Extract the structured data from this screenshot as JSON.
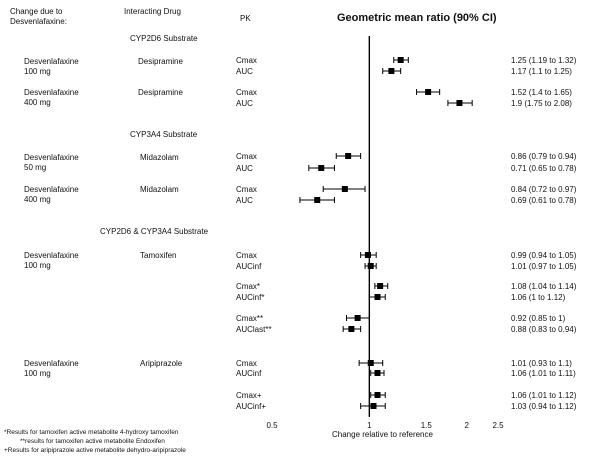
{
  "headers": {
    "col1": [
      "Change due to",
      "Desvenlafaxine:"
    ],
    "col2": "Interacting Drug",
    "col3": "PK",
    "title": "Geometric mean ratio (90% CI)"
  },
  "sections": [
    {
      "label": "CYP2D6 Substrate"
    },
    {
      "label": "CYP3A4 Substrate"
    },
    {
      "label": "CYP2D6 & CYP3A4 Substrate"
    }
  ],
  "groups": [
    {
      "line1": "Desvenlafaxine",
      "line2": "100 mg",
      "drug": "Desipramine"
    },
    {
      "line1": "Desvenlafaxine",
      "line2": "400 mg",
      "drug": "Desipramine"
    },
    {
      "line1": "Desvenlafaxine",
      "line2": "50 mg",
      "drug": "Midazolam"
    },
    {
      "line1": "Desvenlafaxine",
      "line2": "400 mg",
      "drug": "Midazolam"
    },
    {
      "line1": "Desvenlafaxine",
      "line2": "100 mg",
      "drug": "Tamoxifen"
    },
    {
      "line1": "Desvenlafaxine",
      "line2": "100 mg",
      "drug": "Aripiprazole"
    }
  ],
  "footnotes": [
    "*Results for tamoxifen active metabolite 4-hydroxy tamoxifen",
    "**results for tamoxifen active metabolite Endoxifen",
    "+Results for aripiprazole active metabolite dehydro-aripiprazole"
  ],
  "chart_data": {
    "type": "forest",
    "title": "Geometric mean ratio (90% CI)",
    "xlabel": "Change relative to reference",
    "xscale": "log",
    "xlim": [
      0.5,
      2.5
    ],
    "xticks": [
      0.5,
      1,
      1.5,
      2,
      2.5
    ],
    "xtick_labels": [
      "0.5",
      "1",
      "1.5",
      "2",
      "2.5"
    ],
    "reference_line": 1,
    "rows": [
      {
        "pk": "Cmax",
        "value": 1.25,
        "lo": 1.19,
        "hi": 1.32,
        "label": "1.25 (1.19 to 1.32)"
      },
      {
        "pk": "AUC",
        "value": 1.17,
        "lo": 1.1,
        "hi": 1.25,
        "label": "1.17 (1.1 to 1.25)"
      },
      {
        "pk": "Cmax",
        "value": 1.52,
        "lo": 1.4,
        "hi": 1.65,
        "label": "1.52 (1.4 to 1.65)"
      },
      {
        "pk": "AUC",
        "value": 1.9,
        "lo": 1.75,
        "hi": 2.08,
        "label": "1.9 (1.75 to 2.08)"
      },
      {
        "pk": "Cmax",
        "value": 0.86,
        "lo": 0.79,
        "hi": 0.94,
        "label": "0.86 (0.79 to 0.94)"
      },
      {
        "pk": "AUC",
        "value": 0.71,
        "lo": 0.65,
        "hi": 0.78,
        "label": "0.71 (0.65 to 0.78)"
      },
      {
        "pk": "Cmax",
        "value": 0.84,
        "lo": 0.72,
        "hi": 0.97,
        "label": "0.84 (0.72 to 0.97)"
      },
      {
        "pk": "AUC",
        "value": 0.69,
        "lo": 0.61,
        "hi": 0.78,
        "label": "0.69 (0.61 to 0.78)"
      },
      {
        "pk": "Cmax",
        "value": 0.99,
        "lo": 0.94,
        "hi": 1.05,
        "label": "0.99 (0.94 to 1.05)"
      },
      {
        "pk": "AUCinf",
        "value": 1.01,
        "lo": 0.97,
        "hi": 1.05,
        "label": "1.01 (0.97 to 1.05)"
      },
      {
        "pk": "Cmax*",
        "value": 1.08,
        "lo": 1.04,
        "hi": 1.14,
        "label": "1.08 (1.04 to 1.14)"
      },
      {
        "pk": "AUCinf*",
        "value": 1.06,
        "lo": 1,
        "hi": 1.12,
        "label": "1.06 (1 to 1.12)"
      },
      {
        "pk": "Cmax**",
        "value": 0.92,
        "lo": 0.85,
        "hi": 1,
        "label": "0.92 (0.85 to 1)"
      },
      {
        "pk": "AUClast**",
        "value": 0.88,
        "lo": 0.83,
        "hi": 0.94,
        "label": "0.88 (0.83 to 0.94)"
      },
      {
        "pk": "Cmax",
        "value": 1.01,
        "lo": 0.93,
        "hi": 1.1,
        "label": "1.01 (0.93 to 1.1)"
      },
      {
        "pk": "AUCinf",
        "value": 1.06,
        "lo": 1.01,
        "hi": 1.11,
        "label": "1.06 (1.01 to 1.11)"
      },
      {
        "pk": "Cmax+",
        "value": 1.06,
        "lo": 1.01,
        "hi": 1.12,
        "label": "1.06 (1.01 to 1.12)"
      },
      {
        "pk": "AUCinf+",
        "value": 1.03,
        "lo": 0.94,
        "hi": 1.12,
        "label": "1.03 (0.94 to 1.12)"
      }
    ]
  }
}
